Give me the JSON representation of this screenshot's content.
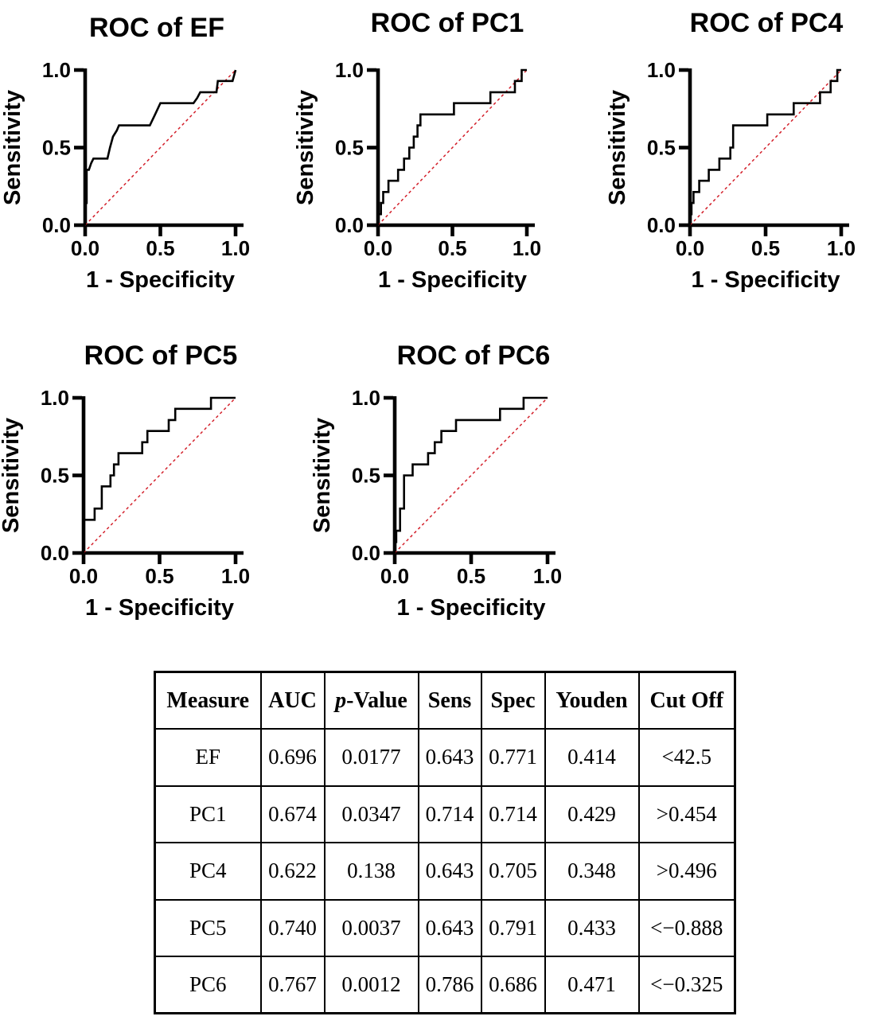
{
  "colors": {
    "curve": "#000000",
    "diagonal": "#d31f2a",
    "axis": "#000000",
    "text": "#000000",
    "table_border": "#000000",
    "background": "#ffffff"
  },
  "chart_data": [
    {
      "id": "ef",
      "type": "line",
      "title": "ROC of EF",
      "xlabel": "1 - Specificity",
      "ylabel": "Sensitivity",
      "xlim": [
        0,
        1
      ],
      "ylim": [
        0,
        1
      ],
      "x_ticks": [
        "0.0",
        "0.5",
        "1.0"
      ],
      "y_ticks": [
        "0.0",
        "0.5",
        "1.0"
      ],
      "grid": false,
      "legend": "none",
      "series": [
        {
          "name": "ROC curve",
          "style": "step-solid",
          "color": "#000000",
          "points": [
            [
              0,
              0
            ],
            [
              0,
              0.143
            ],
            [
              0.01,
              0.143
            ],
            [
              0.01,
              0.357
            ],
            [
              0.025,
              0.357
            ],
            [
              0.04,
              0.4
            ],
            [
              0.055,
              0.429
            ],
            [
              0.148,
              0.429
            ],
            [
              0.165,
              0.5
            ],
            [
              0.185,
              0.571
            ],
            [
              0.21,
              0.61
            ],
            [
              0.225,
              0.643
            ],
            [
              0.43,
              0.643
            ],
            [
              0.465,
              0.714
            ],
            [
              0.5,
              0.786
            ],
            [
              0.72,
              0.786
            ],
            [
              0.745,
              0.82
            ],
            [
              0.765,
              0.857
            ],
            [
              0.873,
              0.857
            ],
            [
              0.882,
              0.929
            ],
            [
              0.98,
              0.929
            ],
            [
              1,
              1
            ]
          ]
        },
        {
          "name": "chance diagonal",
          "style": "dashed",
          "color": "#d31f2a",
          "points": [
            [
              0,
              0
            ],
            [
              1,
              1
            ]
          ]
        }
      ]
    },
    {
      "id": "pc1",
      "type": "line",
      "title": "ROC of PC1",
      "xlabel": "1 - Specificity",
      "ylabel": "Sensitivity",
      "xlim": [
        0,
        1
      ],
      "ylim": [
        0,
        1
      ],
      "x_ticks": [
        "0.0",
        "0.5",
        "1.0"
      ],
      "y_ticks": [
        "0.0",
        "0.5",
        "1.0"
      ],
      "grid": false,
      "legend": "none",
      "series": [
        {
          "name": "ROC curve",
          "style": "step-solid",
          "color": "#000000",
          "points": [
            [
              0,
              0
            ],
            [
              0,
              0.071
            ],
            [
              0.02,
              0.071
            ],
            [
              0.02,
              0.143
            ],
            [
              0.035,
              0.143
            ],
            [
              0.035,
              0.214
            ],
            [
              0.07,
              0.214
            ],
            [
              0.07,
              0.286
            ],
            [
              0.135,
              0.286
            ],
            [
              0.135,
              0.357
            ],
            [
              0.175,
              0.357
            ],
            [
              0.175,
              0.429
            ],
            [
              0.21,
              0.429
            ],
            [
              0.21,
              0.5
            ],
            [
              0.24,
              0.5
            ],
            [
              0.24,
              0.571
            ],
            [
              0.265,
              0.571
            ],
            [
              0.265,
              0.643
            ],
            [
              0.285,
              0.643
            ],
            [
              0.285,
              0.714
            ],
            [
              0.51,
              0.714
            ],
            [
              0.51,
              0.786
            ],
            [
              0.755,
              0.786
            ],
            [
              0.755,
              0.857
            ],
            [
              0.92,
              0.857
            ],
            [
              0.92,
              0.929
            ],
            [
              0.965,
              0.929
            ],
            [
              0.965,
              1
            ],
            [
              1,
              1
            ]
          ]
        },
        {
          "name": "chance diagonal",
          "style": "dashed",
          "color": "#d31f2a",
          "points": [
            [
              0,
              0
            ],
            [
              1,
              1
            ]
          ]
        }
      ]
    },
    {
      "id": "pc4",
      "type": "line",
      "title": "ROC of PC4",
      "xlabel": "1 - Specificity",
      "ylabel": "Sensitivity",
      "xlim": [
        0,
        1
      ],
      "ylim": [
        0,
        1
      ],
      "x_ticks": [
        "0.0",
        "0.5",
        "1.0"
      ],
      "y_ticks": [
        "0.0",
        "0.5",
        "1.0"
      ],
      "grid": false,
      "legend": "none",
      "series": [
        {
          "name": "ROC curve",
          "style": "step-solid",
          "color": "#000000",
          "points": [
            [
              0,
              0
            ],
            [
              0,
              0.071
            ],
            [
              0.01,
              0.071
            ],
            [
              0.01,
              0.143
            ],
            [
              0.023,
              0.143
            ],
            [
              0.023,
              0.214
            ],
            [
              0.061,
              0.214
            ],
            [
              0.061,
              0.286
            ],
            [
              0.124,
              0.286
            ],
            [
              0.124,
              0.357
            ],
            [
              0.194,
              0.357
            ],
            [
              0.194,
              0.429
            ],
            [
              0.267,
              0.429
            ],
            [
              0.267,
              0.5
            ],
            [
              0.285,
              0.5
            ],
            [
              0.285,
              0.643
            ],
            [
              0.511,
              0.643
            ],
            [
              0.511,
              0.714
            ],
            [
              0.686,
              0.714
            ],
            [
              0.686,
              0.786
            ],
            [
              0.86,
              0.786
            ],
            [
              0.86,
              0.857
            ],
            [
              0.93,
              0.857
            ],
            [
              0.93,
              0.929
            ],
            [
              0.974,
              0.929
            ],
            [
              0.974,
              1
            ],
            [
              1,
              1
            ]
          ]
        },
        {
          "name": "chance diagonal",
          "style": "dashed",
          "color": "#d31f2a",
          "points": [
            [
              0,
              0
            ],
            [
              1,
              1
            ]
          ]
        }
      ]
    },
    {
      "id": "pc5",
      "type": "line",
      "title": "ROC of PC5",
      "xlabel": "1 - Specificity",
      "ylabel": "Sensitivity",
      "xlim": [
        0,
        1
      ],
      "ylim": [
        0,
        1
      ],
      "x_ticks": [
        "0.0",
        "0.5",
        "1.0"
      ],
      "y_ticks": [
        "0.0",
        "0.5",
        "1.0"
      ],
      "grid": false,
      "legend": "none",
      "series": [
        {
          "name": "ROC curve",
          "style": "step-solid",
          "color": "#000000",
          "points": [
            [
              0,
              0
            ],
            [
              0,
              0.214
            ],
            [
              0.073,
              0.214
            ],
            [
              0.073,
              0.286
            ],
            [
              0.12,
              0.286
            ],
            [
              0.12,
              0.429
            ],
            [
              0.177,
              0.429
            ],
            [
              0.177,
              0.5
            ],
            [
              0.2,
              0.5
            ],
            [
              0.2,
              0.571
            ],
            [
              0.23,
              0.571
            ],
            [
              0.23,
              0.643
            ],
            [
              0.386,
              0.643
            ],
            [
              0.386,
              0.714
            ],
            [
              0.42,
              0.714
            ],
            [
              0.42,
              0.786
            ],
            [
              0.56,
              0.786
            ],
            [
              0.56,
              0.857
            ],
            [
              0.603,
              0.857
            ],
            [
              0.603,
              0.929
            ],
            [
              0.838,
              0.929
            ],
            [
              0.838,
              1
            ],
            [
              1,
              1
            ]
          ]
        },
        {
          "name": "chance diagonal",
          "style": "dashed",
          "color": "#d31f2a",
          "points": [
            [
              0,
              0
            ],
            [
              1,
              1
            ]
          ]
        }
      ]
    },
    {
      "id": "pc6",
      "type": "line",
      "title": "ROC of PC6",
      "xlabel": "1 - Specificity",
      "ylabel": "Sensitivity",
      "xlim": [
        0,
        1
      ],
      "ylim": [
        0,
        1
      ],
      "x_ticks": [
        "0.0",
        "0.5",
        "1.0"
      ],
      "y_ticks": [
        "0.0",
        "0.5",
        "1.0"
      ],
      "grid": false,
      "legend": "none",
      "series": [
        {
          "name": "ROC curve",
          "style": "step-solid",
          "color": "#000000",
          "points": [
            [
              0,
              0
            ],
            [
              0,
              0.071
            ],
            [
              0.01,
              0.071
            ],
            [
              0.01,
              0.143
            ],
            [
              0.035,
              0.143
            ],
            [
              0.035,
              0.286
            ],
            [
              0.061,
              0.286
            ],
            [
              0.061,
              0.5
            ],
            [
              0.117,
              0.5
            ],
            [
              0.117,
              0.571
            ],
            [
              0.218,
              0.571
            ],
            [
              0.218,
              0.643
            ],
            [
              0.262,
              0.643
            ],
            [
              0.262,
              0.714
            ],
            [
              0.305,
              0.714
            ],
            [
              0.305,
              0.786
            ],
            [
              0.401,
              0.786
            ],
            [
              0.401,
              0.857
            ],
            [
              0.689,
              0.857
            ],
            [
              0.689,
              0.929
            ],
            [
              0.843,
              0.929
            ],
            [
              0.843,
              1
            ],
            [
              1,
              1
            ]
          ]
        },
        {
          "name": "chance diagonal",
          "style": "dashed",
          "color": "#d31f2a",
          "points": [
            [
              0,
              0
            ],
            [
              1,
              1
            ]
          ]
        }
      ]
    }
  ],
  "table": {
    "headers": [
      {
        "label": "Measure"
      },
      {
        "label": "AUC"
      },
      {
        "label": "p-Value",
        "italic_prefix": "p",
        "rest": "-Value"
      },
      {
        "label": "Sens"
      },
      {
        "label": "Spec"
      },
      {
        "label": "Youden"
      },
      {
        "label": "Cut Off"
      }
    ],
    "rows": [
      [
        "EF",
        "0.696",
        "0.0177",
        "0.643",
        "0.771",
        "0.414",
        "<42.5"
      ],
      [
        "PC1",
        "0.674",
        "0.0347",
        "0.714",
        "0.714",
        "0.429",
        ">0.454"
      ],
      [
        "PC4",
        "0.622",
        "0.138",
        "0.643",
        "0.705",
        "0.348",
        ">0.496"
      ],
      [
        "PC5",
        "0.740",
        "0.0037",
        "0.643",
        "0.791",
        "0.433",
        "<−0.888"
      ],
      [
        "PC6",
        "0.767",
        "0.0012",
        "0.786",
        "0.686",
        "0.471",
        "<−0.325"
      ]
    ]
  }
}
